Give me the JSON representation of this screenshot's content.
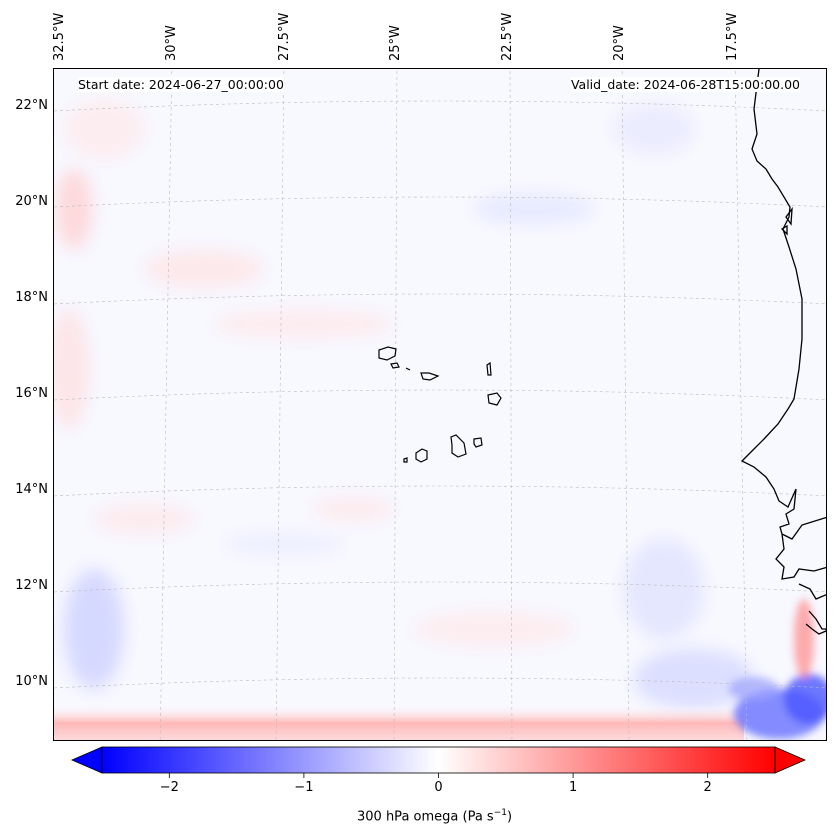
{
  "map": {
    "start_date_label": "Start date: 2024-06-27_00:00:00",
    "valid_date_label": "Valid_date: 2024-06-28T15:00:00.00",
    "longitude_labels": [
      "32.5°W",
      "30°W",
      "27.5°W",
      "25°W",
      "22.5°W",
      "20°W",
      "17.5°W"
    ],
    "latitude_labels": [
      "22°N",
      "20°N",
      "18°N",
      "16°N",
      "14°N",
      "12°N",
      "10°N"
    ],
    "colors": {
      "coast": "#000000",
      "gridline": "#bbbbbb",
      "background_field": "#f8f8ff",
      "positive": "#ff0000",
      "negative": "#0000ff"
    }
  },
  "colorbar": {
    "label": "300 hPa omega (Pa s",
    "label_exp": "−1",
    "label_close": ")",
    "tick_labels": [
      "−2",
      "−1",
      "0",
      "1",
      "2"
    ],
    "tick_values": [
      -2,
      -1,
      0,
      1,
      2
    ],
    "range": [
      -2.5,
      2.5
    ],
    "colors": {
      "min": "#0000ff",
      "mid": "#ffffff",
      "max": "#ff0000"
    }
  }
}
